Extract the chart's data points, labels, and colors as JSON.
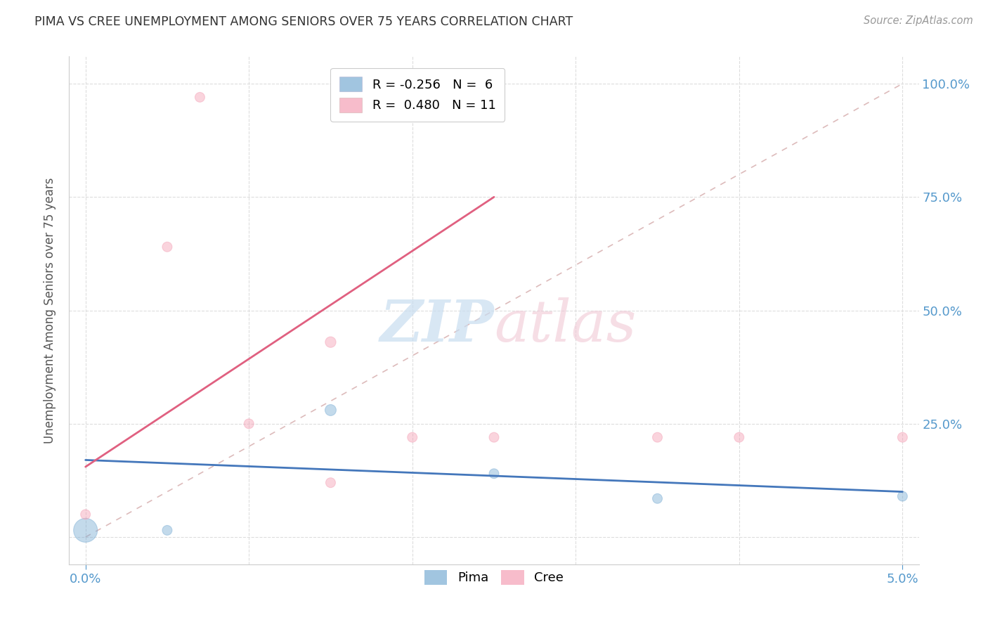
{
  "title": "PIMA VS CREE UNEMPLOYMENT AMONG SENIORS OVER 75 YEARS CORRELATION CHART",
  "source": "Source: ZipAtlas.com",
  "ylabel": "Unemployment Among Seniors over 75 years",
  "pima_color": "#7aadd4",
  "cree_color": "#f4a0b5",
  "trendline_pima_color": "#4477bb",
  "trendline_cree_color": "#e06080",
  "diagonal_color": "#ddbbbb",
  "background_color": "#ffffff",
  "pima_label": "Pima",
  "cree_label": "Cree",
  "pima_R": "-0.256",
  "pima_N": "6",
  "cree_R": "0.480",
  "cree_N": "11",
  "pima_x": [
    0.0,
    0.005,
    0.015,
    0.025,
    0.035,
    0.05
  ],
  "pima_y": [
    0.015,
    0.015,
    0.28,
    0.14,
    0.085,
    0.09
  ],
  "pima_sizes": [
    600,
    100,
    130,
    100,
    100,
    100
  ],
  "cree_x": [
    0.007,
    0.0,
    0.005,
    0.01,
    0.015,
    0.015,
    0.02,
    0.025,
    0.035,
    0.04,
    0.05
  ],
  "cree_y": [
    0.97,
    0.05,
    0.64,
    0.25,
    0.43,
    0.12,
    0.22,
    0.22,
    0.22,
    0.22,
    0.22
  ],
  "cree_sizes": [
    100,
    100,
    100,
    100,
    120,
    100,
    100,
    100,
    100,
    100,
    100
  ],
  "xlim": [
    -0.001,
    0.051
  ],
  "ylim": [
    -0.06,
    1.06
  ],
  "x_ticks_major": [
    0.0,
    0.05
  ],
  "x_ticks_minor": [
    0.01,
    0.02,
    0.03,
    0.04
  ],
  "y_ticks": [
    0.0,
    0.25,
    0.5,
    0.75,
    1.0
  ],
  "y_tick_labels_right": [
    "",
    "25.0%",
    "50.0%",
    "75.0%",
    "100.0%"
  ]
}
